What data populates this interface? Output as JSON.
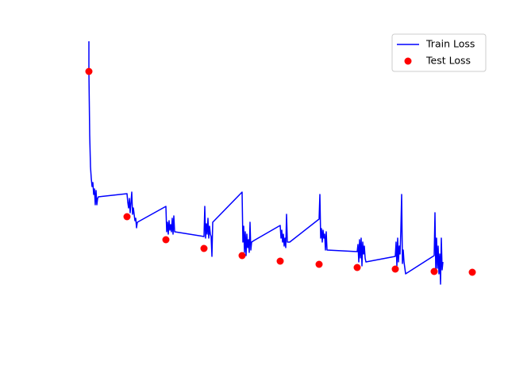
{
  "chart_data": {
    "type": "line",
    "axis": false,
    "legend": "upper right",
    "xlim": [
      -32,
      508
    ],
    "ylim": [
      0,
      4
    ],
    "series": [
      {
        "name": "Train Loss",
        "type": "line",
        "color": "#0000ff",
        "x": [
          0,
          0,
          1,
          2,
          3,
          4,
          5,
          6,
          7,
          8,
          9,
          10,
          11,
          12,
          48,
          49,
          50,
          51,
          52,
          53,
          54,
          55,
          56,
          58,
          59,
          60,
          61,
          97,
          98,
          99,
          100,
          101,
          102,
          103,
          104,
          105,
          106,
          107,
          108,
          145,
          146,
          147,
          148,
          149,
          150,
          151,
          152,
          153,
          154,
          155,
          156,
          193,
          194,
          195,
          196,
          197,
          198,
          199,
          200,
          201,
          202,
          203,
          204,
          205,
          208,
          241,
          242,
          243,
          244,
          245,
          246,
          247,
          248,
          249,
          250,
          253,
          290,
          291,
          292,
          293,
          294,
          295,
          296,
          297,
          298,
          299,
          300,
          338,
          339,
          340,
          341,
          342,
          343,
          344,
          345,
          346,
          347,
          348,
          349,
          386,
          387,
          388,
          389,
          390,
          391,
          392,
          393,
          394,
          395,
          396,
          397,
          399,
          435,
          436,
          437,
          438,
          439,
          440,
          441,
          442,
          443,
          444,
          445,
          446
        ],
        "values": [
          3.88,
          3.5,
          2.7,
          2.3,
          2.15,
          2.05,
          2.1,
          1.95,
          2.02,
          1.82,
          2.0,
          1.82,
          1.9,
          1.92,
          1.96,
          1.85,
          1.78,
          1.9,
          1.72,
          1.85,
          1.98,
          1.7,
          1.78,
          1.62,
          1.65,
          1.53,
          1.6,
          1.8,
          1.48,
          1.6,
          1.45,
          1.62,
          1.5,
          1.57,
          1.48,
          1.65,
          1.45,
          1.68,
          1.48,
          1.42,
          1.8,
          1.4,
          1.58,
          1.45,
          1.65,
          1.4,
          1.55,
          1.45,
          1.42,
          1.17,
          1.6,
          1.98,
          1.35,
          1.55,
          1.22,
          1.48,
          1.18,
          1.45,
          1.28,
          1.38,
          1.22,
          1.6,
          1.25,
          1.35,
          1.37,
          1.56,
          1.4,
          1.5,
          1.35,
          1.45,
          1.3,
          1.4,
          1.28,
          1.7,
          1.35,
          1.35,
          1.64,
          1.95,
          1.4,
          1.52,
          1.35,
          1.5,
          1.4,
          1.45,
          1.25,
          1.48,
          1.25,
          1.23,
          1.32,
          1.1,
          1.38,
          1.15,
          1.4,
          1.05,
          1.35,
          1.2,
          1.3,
          1.15,
          1.1,
          1.17,
          1.35,
          1.05,
          1.4,
          1.1,
          1.3,
          1.2,
          1.5,
          1.95,
          1.08,
          1.25,
          1.1,
          0.95,
          1.18,
          1.72,
          0.98,
          1.4,
          1.02,
          1.3,
          0.95,
          1.2,
          0.82,
          1.4,
          1.0,
          1.1
        ]
      },
      {
        "name": "Test Loss",
        "type": "scatter",
        "color": "#ff0000",
        "x": [
          0,
          48,
          97,
          145,
          193,
          241,
          290,
          338,
          386,
          435,
          483
        ],
        "values": [
          3.5,
          1.67,
          1.38,
          1.27,
          1.18,
          1.11,
          1.07,
          1.03,
          1.01,
          0.98,
          0.97
        ]
      }
    ]
  }
}
